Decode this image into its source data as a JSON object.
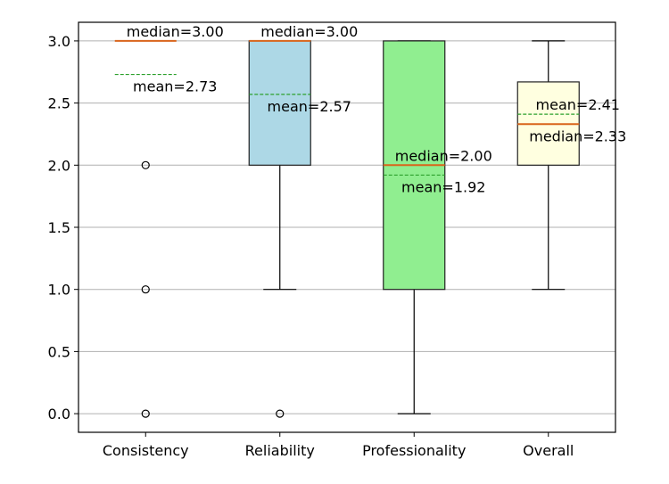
{
  "chart_data": {
    "type": "box",
    "title": "",
    "xlabel": "",
    "ylabel": "",
    "ylim": [
      -0.15,
      3.15
    ],
    "yticks": [
      "0.0",
      "0.5",
      "1.0",
      "1.5",
      "2.0",
      "2.5",
      "3.0"
    ],
    "grid": "y",
    "categories": [
      "Consistency",
      "Reliability",
      "Professionality",
      "Overall"
    ],
    "boxes": [
      {
        "label": "Consistency",
        "q1": 3,
        "median": 3,
        "q3": 3,
        "whisker_low": 3,
        "whisker_high": 3,
        "mean": 2.73,
        "fliers": [
          2,
          1,
          0
        ],
        "color": "#ffc0cb",
        "median_text": "median=3.00",
        "mean_text": "mean=2.73"
      },
      {
        "label": "Reliability",
        "q1": 2,
        "median": 3,
        "q3": 3,
        "whisker_low": 1,
        "whisker_high": 3,
        "mean": 2.57,
        "fliers": [
          0
        ],
        "color": "#add8e6",
        "median_text": "median=3.00",
        "mean_text": "mean=2.57"
      },
      {
        "label": "Professionality",
        "q1": 1,
        "median": 2,
        "q3": 3,
        "whisker_low": 0,
        "whisker_high": 3,
        "mean": 1.92,
        "fliers": [],
        "color": "#90ee90",
        "median_text": "median=2.00",
        "mean_text": "mean=1.92"
      },
      {
        "label": "Overall",
        "q1": 2,
        "median": 2.33,
        "q3": 2.67,
        "whisker_low": 1,
        "whisker_high": 3,
        "mean": 2.41,
        "fliers": [],
        "color": "#ffffe0",
        "median_text": "median=2.33",
        "mean_text": "mean=2.41"
      }
    ],
    "median_color": "#d9651b",
    "mean_color": "#2ca02c"
  }
}
